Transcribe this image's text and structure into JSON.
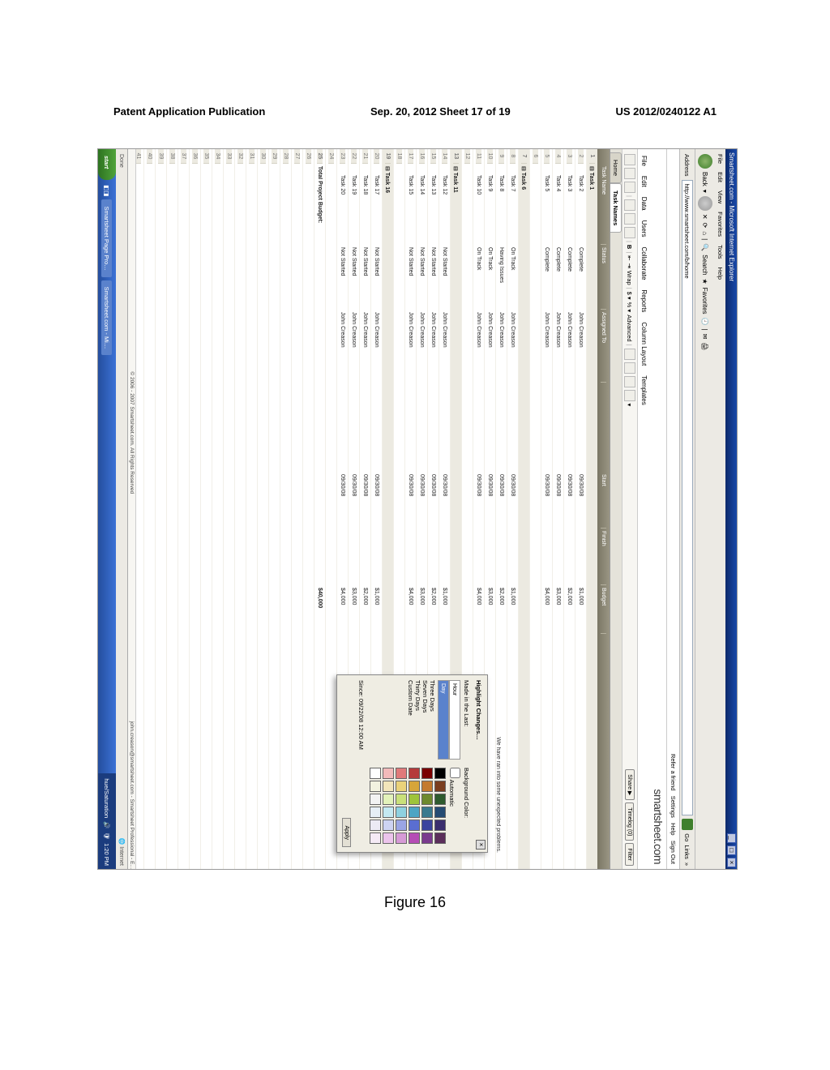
{
  "patent_header": {
    "left": "Patent Application Publication",
    "center": "Sep. 20, 2012  Sheet 17 of 19",
    "right": "US 2012/0240122 A1"
  },
  "figure_caption": "Figure 16",
  "window": {
    "title": "Smartsheet.com - Microsoft Internet Explorer",
    "menubar": [
      "File",
      "Edit",
      "View",
      "Favorites",
      "Tools",
      "Help"
    ],
    "back_label": "Back",
    "search_label": "Search",
    "favorites_label": "Favorites",
    "address_label": "Address",
    "address_value": "http://www.smartsheet.com/b/home",
    "go_label": "Go",
    "links_label": "Links"
  },
  "app": {
    "top_links": [
      "Refer a friend",
      "Settings",
      "Help",
      "Sign Out"
    ],
    "brand": "smartsheet.com",
    "menu": [
      "File",
      "Edit",
      "Data",
      "Users",
      "Collaborate",
      "Reports",
      "Column Layout",
      "Templates"
    ],
    "share_btn": "Share",
    "timelog_btn": "Timelog (0)",
    "filter_btn": "Filter",
    "tab_home": "Home",
    "tab_sheet": "Task Names",
    "toolbar_adv": "Advanced"
  },
  "columns": [
    "",
    "Task Name",
    "Status",
    "Assigned To",
    "",
    "Start",
    "Finish",
    "Budget"
  ],
  "rows": [
    {
      "n": 1,
      "name": "Task 1",
      "parent": true
    },
    {
      "n": 2,
      "name": "Task 2",
      "status": "Complete",
      "who": "John Creason",
      "start": "09/30/08",
      "fin": "",
      "bud": "$1,000",
      "child": true
    },
    {
      "n": 3,
      "name": "Task 3",
      "status": "Complete",
      "who": "John Creason",
      "start": "09/30/08",
      "fin": "",
      "bud": "$2,000",
      "child": true
    },
    {
      "n": 4,
      "name": "Task 4",
      "status": "Complete",
      "who": "John Creason",
      "start": "09/30/08",
      "fin": "",
      "bud": "$3,000",
      "child": true
    },
    {
      "n": 5,
      "name": "Task 5",
      "status": "Complete",
      "who": "John Creason",
      "start": "09/30/08",
      "fin": "",
      "bud": "$4,000",
      "child": true
    },
    {
      "n": 6,
      "name": "",
      "blank": true
    },
    {
      "n": 7,
      "name": "Task 6",
      "parent": true
    },
    {
      "n": 8,
      "name": "Task 7",
      "status": "On Track",
      "who": "John Creason",
      "start": "09/30/08",
      "fin": "",
      "bud": "$1,000",
      "child": true
    },
    {
      "n": 9,
      "name": "Task 8",
      "status": "Having Issues",
      "who": "John Creason",
      "start": "09/30/08",
      "fin": "",
      "bud": "$2,000",
      "child": true,
      "note": "We have ran into some unexpected problems."
    },
    {
      "n": 10,
      "name": "Task 9",
      "status": "On Track",
      "who": "John Creason",
      "start": "09/30/08",
      "fin": "",
      "bud": "$3,000",
      "child": true
    },
    {
      "n": 11,
      "name": "Task 10",
      "status": "On Track",
      "who": "John Creason",
      "start": "09/30/08",
      "fin": "",
      "bud": "$4,000",
      "child": true
    },
    {
      "n": 12,
      "name": "",
      "blank": true
    },
    {
      "n": 13,
      "name": "Task 11",
      "parent": true
    },
    {
      "n": 14,
      "name": "Task 12",
      "status": "Not Started",
      "who": "John Creason",
      "start": "09/30/08",
      "fin": "",
      "bud": "$1,000",
      "child": true
    },
    {
      "n": 15,
      "name": "Task 13",
      "status": "Not Started",
      "who": "John Creason",
      "start": "09/30/08",
      "fin": "",
      "bud": "$2,000",
      "child": true
    },
    {
      "n": 16,
      "name": "Task 14",
      "status": "Not Started",
      "who": "John Creason",
      "start": "09/30/08",
      "fin": "",
      "bud": "$3,000",
      "child": true
    },
    {
      "n": 17,
      "name": "Task 15",
      "status": "Not Started",
      "who": "John Creason",
      "start": "09/30/08",
      "fin": "",
      "bud": "$4,000",
      "child": true
    },
    {
      "n": 18,
      "name": "",
      "blank": true
    },
    {
      "n": 19,
      "name": "Task 16",
      "parent": true
    },
    {
      "n": 20,
      "name": "Task 17",
      "status": "Not Started",
      "who": "John Creason",
      "start": "09/30/08",
      "fin": "",
      "bud": "$1,000",
      "child": true
    },
    {
      "n": 21,
      "name": "Task 18",
      "status": "Not Started",
      "who": "John Creason",
      "start": "09/30/08",
      "fin": "",
      "bud": "$2,000",
      "child": true
    },
    {
      "n": 22,
      "name": "Task 19",
      "status": "Not Started",
      "who": "John Creason",
      "start": "09/30/08",
      "fin": "",
      "bud": "$3,000",
      "child": true
    },
    {
      "n": 23,
      "name": "Task 20",
      "status": "Not Started",
      "who": "John Creason",
      "start": "09/30/08",
      "fin": "",
      "bud": "$4,000",
      "child": true
    },
    {
      "n": 24,
      "name": "",
      "blank": true
    },
    {
      "n": 25,
      "name": "Total Project Budget:",
      "total": true,
      "bud": "$40,000"
    },
    {
      "n": 26
    },
    {
      "n": 27
    },
    {
      "n": 28
    },
    {
      "n": 29
    },
    {
      "n": 30
    },
    {
      "n": 31
    },
    {
      "n": 32
    },
    {
      "n": 33
    },
    {
      "n": 34
    },
    {
      "n": 35
    },
    {
      "n": 36
    },
    {
      "n": 37
    },
    {
      "n": 38
    },
    {
      "n": 39
    },
    {
      "n": 40
    },
    {
      "n": 41
    },
    {
      "n": 42
    },
    {
      "n": 43
    }
  ],
  "popup": {
    "title": "Highlight Changes…",
    "left_label": "Made in the Last:",
    "right_label": "Background Color:",
    "auto_cb": "Automatic",
    "options": [
      "Hour",
      "Day",
      "Three Days",
      "Seven Days",
      "Thirty Days",
      "Custom Date"
    ],
    "selected": "Day",
    "since": "Since: 09/22/08 12:00 AM",
    "apply": "Apply",
    "palette": [
      "#000000",
      "#7a3e1f",
      "#2e5b2e",
      "#254b73",
      "#3a2e6e",
      "#5b2e5b",
      "#7a0000",
      "#c47a2e",
      "#6e8a2e",
      "#3a7a8e",
      "#3a449e",
      "#7a3a8e",
      "#b53a3a",
      "#d6a53a",
      "#9ec43a",
      "#4ca5c4",
      "#5a6ed1",
      "#b54cb5",
      "#e07a7a",
      "#ead27a",
      "#c9e07a",
      "#8ed1e0",
      "#9aa5e5",
      "#d69ad6",
      "#f2baba",
      "#f2e5ba",
      "#e3f2ba",
      "#c4e9f2",
      "#cdd3f2",
      "#ecc4ec",
      "#ffffff",
      "#f2f2e0",
      "#f2f2f2",
      "#e6eef5",
      "#eceaf5",
      "#f5eaf5"
    ]
  },
  "footer_copy": "© 2006 - 2007 Smartsheet.com. All Rights Reserved",
  "footer_right": "john.creason@smartsheet.com - Smartsheet Professional - E…",
  "status_done": "Done",
  "status_zone": "Internet",
  "taskbar": {
    "start": "start",
    "items": [
      "Smartsheet Page Pro…",
      "Smartsheet.com - Mi…"
    ],
    "tray_label": "hue/Saturation",
    "time": "1:20 PM"
  }
}
